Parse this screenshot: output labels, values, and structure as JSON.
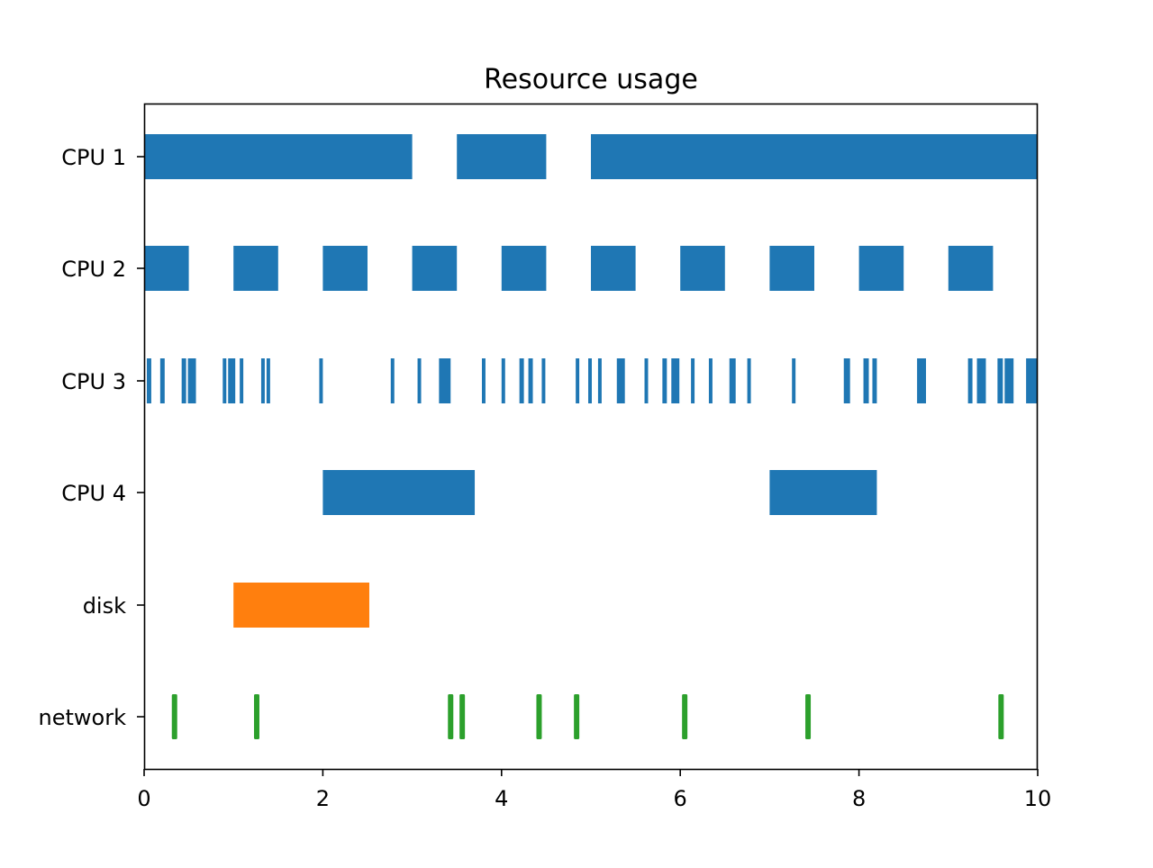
{
  "chart_data": {
    "type": "broken_barh",
    "title": "Resource usage",
    "xlabel": "",
    "ylabel": "",
    "xlim": [
      0,
      10
    ],
    "x_ticks": [
      0,
      2,
      4,
      6,
      8,
      10
    ],
    "x_tick_labels": [
      "0",
      "2",
      "4",
      "6",
      "8",
      "10"
    ],
    "grid": false,
    "rows": [
      {
        "label": "CPU 1",
        "color": "#1f77b4",
        "style": "block",
        "intervals": [
          [
            0,
            3
          ],
          [
            3.5,
            4.5
          ],
          [
            5,
            10
          ]
        ]
      },
      {
        "label": "CPU 2",
        "color": "#1f77b4",
        "style": "block",
        "intervals": [
          [
            0,
            0.5
          ],
          [
            1,
            1.5
          ],
          [
            2,
            2.5
          ],
          [
            3,
            3.5
          ],
          [
            4,
            4.5
          ],
          [
            5,
            5.5
          ],
          [
            6,
            6.5
          ],
          [
            7,
            7.5
          ],
          [
            8,
            8.5
          ],
          [
            9,
            9.5
          ]
        ]
      },
      {
        "label": "CPU 3",
        "color": "#1f77b4",
        "style": "block",
        "intervals": [
          [
            0.03,
            0.08
          ],
          [
            0.18,
            0.23
          ],
          [
            0.42,
            0.47
          ],
          [
            0.49,
            0.58
          ],
          [
            0.88,
            0.92
          ],
          [
            0.94,
            1.02
          ],
          [
            1.07,
            1.11
          ],
          [
            1.31,
            1.35
          ],
          [
            1.37,
            1.41
          ],
          [
            1.96,
            2.0
          ],
          [
            2.76,
            2.8
          ],
          [
            3.06,
            3.1
          ],
          [
            3.3,
            3.43
          ],
          [
            3.78,
            3.82
          ],
          [
            4.0,
            4.04
          ],
          [
            4.2,
            4.25
          ],
          [
            4.3,
            4.35
          ],
          [
            4.45,
            4.49
          ],
          [
            4.83,
            4.87
          ],
          [
            4.97,
            5.01
          ],
          [
            5.08,
            5.12
          ],
          [
            5.29,
            5.38
          ],
          [
            5.6,
            5.64
          ],
          [
            5.8,
            5.85
          ],
          [
            5.9,
            5.99
          ],
          [
            6.12,
            6.16
          ],
          [
            6.32,
            6.36
          ],
          [
            6.55,
            6.62
          ],
          [
            6.75,
            6.79
          ],
          [
            7.25,
            7.29
          ],
          [
            7.83,
            7.9
          ],
          [
            8.05,
            8.11
          ],
          [
            8.15,
            8.2
          ],
          [
            8.65,
            8.75
          ],
          [
            9.22,
            9.27
          ],
          [
            9.32,
            9.42
          ],
          [
            9.55,
            9.61
          ],
          [
            9.63,
            9.73
          ],
          [
            9.87,
            10.0
          ]
        ]
      },
      {
        "label": "CPU 4",
        "color": "#1f77b4",
        "style": "block",
        "intervals": [
          [
            2,
            3.7
          ],
          [
            7,
            8.2
          ]
        ]
      },
      {
        "label": "disk",
        "color": "#ff7f0e",
        "style": "block",
        "intervals": [
          [
            1,
            2.52
          ]
        ]
      },
      {
        "label": "network",
        "color": "#2ca02c",
        "style": "tick",
        "intervals": [
          [
            0.31,
            0.37
          ],
          [
            1.23,
            1.29
          ],
          [
            3.4,
            3.46
          ],
          [
            3.52,
            3.6
          ],
          [
            4.39,
            4.45
          ],
          [
            4.81,
            4.87
          ],
          [
            6.02,
            6.08
          ],
          [
            7.4,
            7.46
          ],
          [
            9.54,
            9.64
          ]
        ]
      }
    ]
  }
}
